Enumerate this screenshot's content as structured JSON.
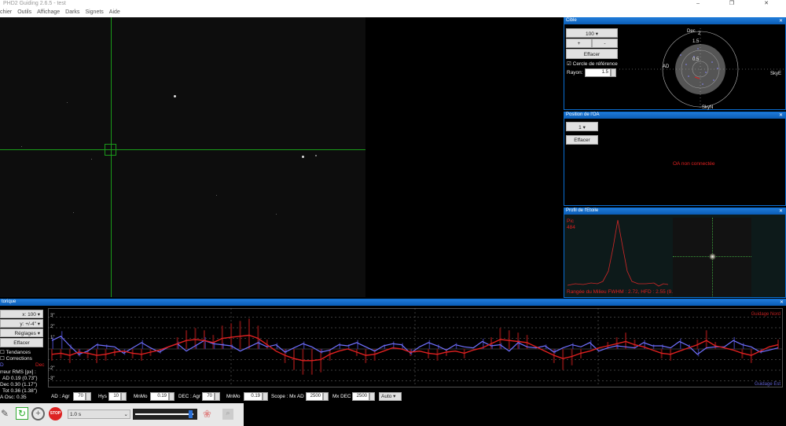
{
  "window": {
    "title": "PHD2 Guiding 2.6.5 - test",
    "controls": "–  ❐  ✕"
  },
  "menu": [
    "chier",
    "Outils",
    "Affichage",
    "Darks",
    "Signets",
    "Aide"
  ],
  "target_panel": {
    "title": "Cible",
    "scale": "100",
    "zoom_in": "+",
    "zoom_out": "-",
    "clear": "Effacer",
    "ref_circle_label": "Cercle de référence",
    "ref_circle_checked": true,
    "radius_label": "Rayon:",
    "radius_value": "1.5",
    "axis_labels": {
      "dec": "Dec",
      "ra": "AD",
      "east": "SkyE",
      "north": "SkyN"
    },
    "ring_labels": [
      "2",
      "1.5",
      "0.5"
    ]
  },
  "ao_panel": {
    "title": "Position de l'OA",
    "value": "1",
    "clear": "Effacer",
    "status": "OA non connectée"
  },
  "star_profile": {
    "title": "Profil de l'Etoile",
    "peak_label": "Pic",
    "peak_value": "484",
    "footer": "Rangée du Milieu FWHM : 2.72, HFD : 2.55 (9.8"
  },
  "history": {
    "title": "torique",
    "x_scale": "x: 100",
    "y_scale": "y: +/-4\"",
    "settings": "Réglages",
    "clear": "Effacer",
    "trends": "Tendances",
    "corrections": "Corrections",
    "trends_checked": false,
    "corrections_checked": false,
    "ra_legend": "D",
    "dec_legend": "Dec",
    "rms_title": "rreur RMS [px] :",
    "rms_ra": "AD 0.19 (0.73\")",
    "rms_dec": "Dec 0.30 (1.17\")",
    "rms_tot": "Tot 0.36 (1.38\")",
    "ra_osc": "A Osc: 0.35",
    "y_ticks": [
      "3\"",
      "2\"",
      "1\"",
      "-2\"",
      "-3\""
    ],
    "north_label": "Guidage Nord",
    "east_label": "Guidage Est",
    "colors": {
      "ra": "#7070ff",
      "dec": "#e02020"
    },
    "ra": [
      0.8,
      1.2,
      0.3,
      -0.5,
      -0.2,
      0.4,
      0.3,
      0.2,
      -0.4,
      0.1,
      0.6,
      0.1,
      -0.3,
      0.2,
      0.5,
      -0.2,
      0.3,
      0.8,
      0.5,
      0.4,
      0.3,
      -0.2,
      0.2,
      0.6,
      0.2,
      0.4,
      -0.3,
      0.1,
      0.5,
      0.2,
      -0.3,
      -0.1,
      0.4,
      0.3,
      0.6,
      0.2,
      -0.2,
      0.3,
      0.5,
      0.4,
      -0.4,
      0.2,
      0.6,
      0.3,
      -0.1,
      0.4,
      0.2,
      0.1,
      0.7,
      0.3,
      0.4,
      -0.2,
      0.6,
      0.2,
      0.1,
      0.3,
      -0.3,
      0.1,
      0.4,
      0.2,
      0.6,
      -0.2,
      0.1,
      0.3,
      0.2,
      0.1,
      0.6,
      0.3,
      0.3,
      0.1,
      0.7,
      0.3,
      -0.5,
      0.1,
      0.2,
      0.2,
      0.8,
      0.4,
      0.2,
      -0.3,
      -0.1,
      0.1
    ],
    "dec": [
      -0.5,
      -0.4,
      -0.6,
      -0.3,
      -0.4,
      -0.6,
      -0.5,
      -0.3,
      -0.2,
      -0.4,
      -0.5,
      -0.3,
      -0.1,
      0.2,
      0.5,
      0.8,
      0.9,
      0.8,
      0.6,
      1.0,
      1.1,
      1.2,
      1.3,
      1.0,
      0.4,
      -0.2,
      -0.6,
      -0.9,
      -1.1,
      -1.1,
      -1.0,
      -0.5,
      -0.2,
      0.0,
      -0.3,
      -0.6,
      -0.5,
      -0.2,
      0.1,
      0.0,
      -0.3,
      -0.2,
      -0.4,
      -0.5,
      -0.3,
      -0.2,
      -0.4,
      -0.1,
      0.1,
      0.5,
      0.9,
      0.8,
      0.7,
      0.6,
      0.2,
      -0.2,
      -0.6,
      -0.9,
      -0.7,
      -0.4,
      -0.2,
      0.1,
      0.3,
      0.5,
      0.7,
      0.4,
      0.2,
      -0.1,
      -0.4,
      -0.5,
      -0.2,
      0.1,
      0.4,
      0.8,
      0.3,
      0.1,
      -0.1,
      -0.4,
      -0.6,
      -0.2,
      0.2,
      0.4
    ]
  },
  "bottom_controls": {
    "ra_label": "AD : Agr",
    "ra_aggr": "70",
    "hys_label": "Hys",
    "hys": "10",
    "minmo_label": "MnMo",
    "ra_minmo": "0.19",
    "dec_label": "DEC : Agr",
    "dec_aggr": "70",
    "dec_minmo_label": "MnMo",
    "dec_minmo": "0.19",
    "scope_label": "Scope : Mx AD",
    "max_ra": "2500",
    "max_dec_label": "Mx DEC",
    "max_dec": "2500",
    "dec_mode": "Auto"
  },
  "toolbar": {
    "exposure": "1.0 s",
    "gamma_level": 0.95,
    "stop": "STOP"
  }
}
